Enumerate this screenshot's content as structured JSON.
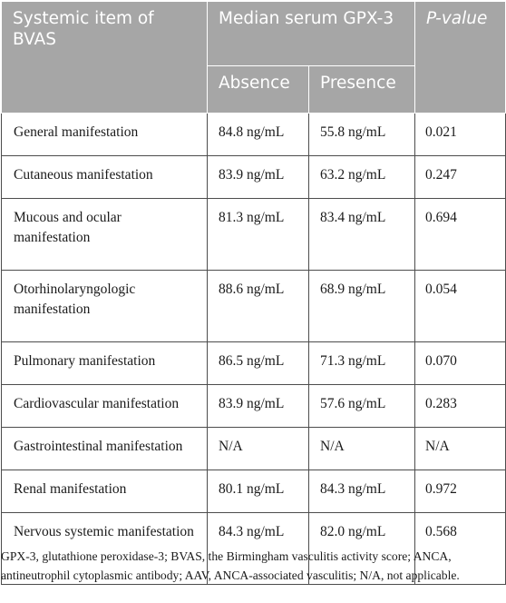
{
  "header": {
    "systemic_item": "Systemic item of BVAS",
    "median_serum": "Median serum GPX-3",
    "p_value": "P-value",
    "absence": "Absence",
    "presence": "Presence"
  },
  "rows": [
    {
      "item": "General manifestation",
      "absence": "84.8 ng/mL",
      "presence": "55.8 ng/mL",
      "p": "0.021"
    },
    {
      "item": "Cutaneous manifestation",
      "absence": "83.9 ng/mL",
      "presence": "63.2 ng/mL",
      "p": "0.247"
    },
    {
      "item": "Mucous and ocular manifestation",
      "absence": "81.3 ng/mL",
      "presence": "83.4 ng/mL",
      "p": "0.694"
    },
    {
      "item": "Otorhinolaryngologic manifestation",
      "absence": "88.6 ng/mL",
      "presence": "68.9 ng/mL",
      "p": "0.054"
    },
    {
      "item": "Pulmonary manifestation",
      "absence": "86.5 ng/mL",
      "presence": "71.3 ng/mL",
      "p": "0.070"
    },
    {
      "item": "Cardiovascular manifestation",
      "absence": "83.9 ng/mL",
      "presence": "57.6 ng/mL",
      "p": "0.283"
    },
    {
      "item": "Gastrointestinal manifestation",
      "absence": "N/A",
      "presence": "N/A",
      "p": "N/A"
    },
    {
      "item": "Renal manifestation",
      "absence": "80.1 ng/mL",
      "presence": "84.3 ng/mL",
      "p": "0.972"
    },
    {
      "item": "Nervous systemic manifestation",
      "absence": "84.3 ng/mL",
      "presence": "82.0 ng/mL",
      "p": "0.568"
    }
  ],
  "footnote": "GPX-3, glutathione peroxidase-3; BVAS, the Birmingham vasculitis activity score; ANCA, antineutrophil cytoplasmic antibody; AAV, ANCA-associated vasculitis; N/A, not applicable."
}
